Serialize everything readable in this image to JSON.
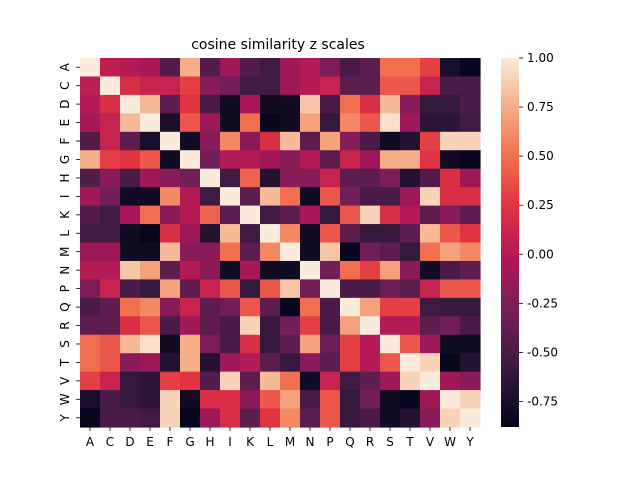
{
  "chart_data": {
    "type": "heatmap",
    "title": "cosine similarity z scales",
    "xlabel": "",
    "ylabel": "",
    "x_categories": [
      "A",
      "C",
      "D",
      "E",
      "F",
      "G",
      "H",
      "I",
      "K",
      "L",
      "M",
      "N",
      "P",
      "Q",
      "R",
      "S",
      "T",
      "V",
      "W",
      "Y"
    ],
    "y_categories": [
      "A",
      "C",
      "D",
      "E",
      "F",
      "G",
      "H",
      "I",
      "K",
      "L",
      "M",
      "N",
      "P",
      "Q",
      "R",
      "S",
      "T",
      "V",
      "W",
      "Y"
    ],
    "x_tick_labels": [
      "A",
      "C",
      "D",
      "E",
      "F",
      "G",
      "H",
      "I",
      "K",
      "L",
      "M",
      "N",
      "P",
      "Q",
      "R",
      "S",
      "T",
      "V",
      "W",
      "Y"
    ],
    "y_tick_labels": [
      "A",
      "C",
      "D",
      "E",
      "F",
      "G",
      "H",
      "I",
      "K",
      "L",
      "M",
      "N",
      "P",
      "Q",
      "R",
      "S",
      "T",
      "V",
      "W",
      "Y"
    ],
    "values": [
      [
        1.0,
        0.05,
        0.0,
        -0.05,
        -0.45,
        0.75,
        -0.45,
        -0.1,
        -0.45,
        -0.55,
        -0.1,
        0.0,
        -0.25,
        -0.5,
        -0.4,
        0.5,
        0.5,
        0.3,
        -0.75,
        -0.85
      ],
      [
        0.05,
        1.0,
        0.2,
        0.1,
        0.1,
        0.3,
        -0.2,
        -0.3,
        -0.55,
        -0.55,
        -0.1,
        0.0,
        0.1,
        -0.4,
        -0.4,
        0.4,
        0.4,
        0.1,
        -0.5,
        -0.5
      ],
      [
        0.0,
        0.2,
        1.0,
        0.8,
        -0.4,
        0.25,
        -0.5,
        -0.8,
        -0.05,
        -0.8,
        -0.8,
        0.85,
        -0.5,
        0.5,
        0.2,
        0.8,
        -0.2,
        -0.6,
        -0.6,
        -0.5
      ],
      [
        -0.05,
        0.1,
        0.8,
        1.0,
        -0.75,
        0.4,
        -0.1,
        -0.8,
        0.5,
        -0.85,
        -0.8,
        0.7,
        -0.6,
        0.6,
        0.4,
        0.95,
        -0.1,
        -0.65,
        -0.65,
        -0.55
      ],
      [
        -0.45,
        0.1,
        -0.4,
        -0.75,
        1.0,
        -0.8,
        -0.2,
        0.6,
        -0.2,
        0.2,
        0.8,
        -0.4,
        0.7,
        -0.2,
        -0.5,
        -0.8,
        -0.7,
        0.3,
        0.9,
        0.9
      ],
      [
        0.75,
        0.3,
        0.25,
        0.4,
        -0.8,
        1.0,
        -0.3,
        0.0,
        0.0,
        -0.1,
        -0.2,
        0.0,
        -0.4,
        0.1,
        -0.1,
        0.75,
        0.75,
        0.25,
        -0.8,
        -0.85
      ],
      [
        -0.45,
        -0.2,
        -0.5,
        -0.1,
        -0.2,
        -0.3,
        1.0,
        -0.55,
        0.45,
        -0.7,
        -0.2,
        -0.2,
        0.1,
        -0.4,
        -0.4,
        -0.25,
        -0.7,
        -0.45,
        0.2,
        -0.1
      ],
      [
        -0.1,
        -0.3,
        -0.8,
        -0.8,
        0.6,
        0.0,
        -0.55,
        1.0,
        -0.4,
        0.8,
        0.5,
        -0.8,
        0.4,
        -0.3,
        -0.5,
        -0.5,
        -0.1,
        0.9,
        0.2,
        0.2
      ],
      [
        -0.45,
        -0.55,
        -0.05,
        0.5,
        -0.2,
        0.0,
        0.45,
        -0.4,
        1.0,
        -0.55,
        -0.4,
        -0.05,
        -0.6,
        0.4,
        0.9,
        0.2,
        0.0,
        -0.4,
        -0.2,
        -0.4
      ],
      [
        -0.55,
        -0.55,
        -0.8,
        -0.85,
        0.2,
        -0.1,
        -0.7,
        0.8,
        -0.55,
        1.0,
        0.6,
        -0.8,
        0.4,
        -0.4,
        -0.6,
        -0.6,
        -0.4,
        0.8,
        0.4,
        0.25
      ],
      [
        -0.1,
        -0.1,
        -0.8,
        -0.8,
        0.8,
        -0.2,
        -0.2,
        0.5,
        -0.4,
        0.6,
        1.0,
        -0.8,
        0.85,
        -0.85,
        -0.3,
        -0.4,
        -0.6,
        0.5,
        0.7,
        0.6
      ],
      [
        0.0,
        0.0,
        0.85,
        0.7,
        -0.4,
        0.0,
        -0.2,
        -0.8,
        -0.05,
        -0.8,
        -0.8,
        1.0,
        -0.3,
        0.5,
        0.3,
        0.7,
        -0.2,
        -0.8,
        -0.5,
        -0.4
      ],
      [
        -0.25,
        0.1,
        -0.5,
        -0.6,
        0.7,
        -0.4,
        0.1,
        0.4,
        -0.6,
        0.4,
        0.85,
        -0.3,
        1.0,
        -0.5,
        -0.5,
        -0.35,
        -0.4,
        0.1,
        0.4,
        0.4
      ],
      [
        -0.5,
        -0.4,
        0.5,
        0.6,
        -0.2,
        0.1,
        -0.4,
        -0.3,
        0.4,
        -0.4,
        -0.85,
        0.5,
        -0.5,
        1.0,
        0.7,
        0.3,
        0.3,
        -0.55,
        -0.6,
        -0.6
      ],
      [
        -0.4,
        -0.4,
        0.2,
        0.4,
        -0.5,
        -0.1,
        -0.4,
        -0.5,
        0.9,
        -0.6,
        -0.3,
        0.3,
        -0.5,
        0.7,
        1.0,
        0.0,
        0.0,
        -0.4,
        -0.3,
        -0.5
      ],
      [
        0.5,
        0.4,
        0.8,
        0.95,
        -0.8,
        0.75,
        -0.25,
        -0.5,
        0.2,
        -0.6,
        -0.4,
        0.7,
        -0.35,
        0.3,
        0.0,
        1.0,
        0.4,
        -0.1,
        -0.8,
        -0.8
      ],
      [
        0.5,
        0.4,
        -0.2,
        -0.1,
        -0.7,
        0.75,
        -0.7,
        -0.1,
        0.0,
        -0.4,
        -0.6,
        -0.2,
        -0.4,
        0.3,
        0.0,
        0.4,
        1.0,
        0.9,
        -0.85,
        -0.7
      ],
      [
        0.3,
        0.1,
        -0.6,
        -0.65,
        0.3,
        0.25,
        -0.45,
        0.9,
        -0.4,
        0.8,
        0.5,
        -0.8,
        0.1,
        -0.55,
        -0.4,
        -0.1,
        0.9,
        1.0,
        -0.1,
        -0.2
      ],
      [
        -0.75,
        -0.5,
        -0.6,
        -0.65,
        0.9,
        -0.8,
        0.2,
        0.2,
        -0.2,
        0.4,
        0.7,
        -0.5,
        0.4,
        -0.6,
        -0.3,
        -0.8,
        -0.85,
        -0.1,
        1.0,
        0.9
      ],
      [
        -0.85,
        -0.5,
        -0.5,
        -0.55,
        0.9,
        -0.85,
        -0.1,
        0.2,
        -0.4,
        0.25,
        0.6,
        -0.4,
        0.4,
        -0.6,
        -0.5,
        -0.8,
        -0.7,
        -0.2,
        0.9,
        1.0
      ]
    ],
    "vmin": -0.88,
    "vmax": 1.0,
    "colormap": "rocket",
    "colorbar_ticks": [
      "-0.75",
      "-0.50",
      "-0.25",
      "0.00",
      "0.25",
      "0.50",
      "0.75",
      "1.00"
    ],
    "legend": "colorbar-right",
    "grid": false
  }
}
